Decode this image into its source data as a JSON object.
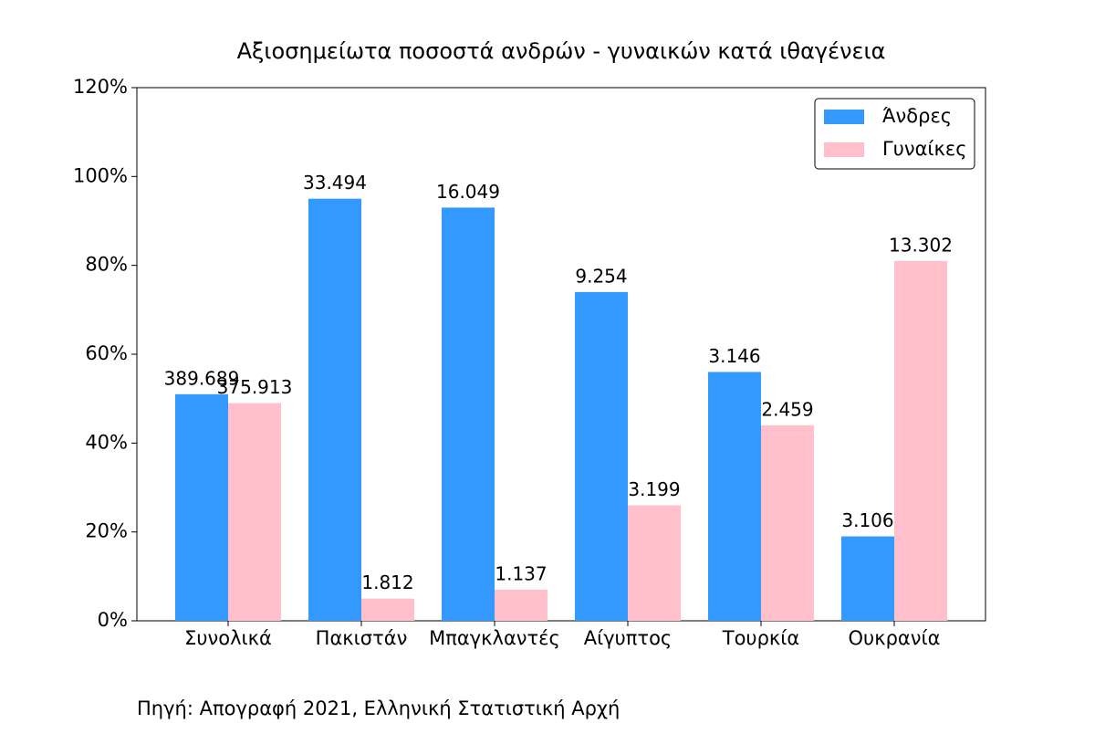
{
  "chart_data": {
    "type": "bar",
    "title": "Αξιοσημείωτα ποσοστά ανδρών - γυναικών κατά ιθαγένεια",
    "source": "Πηγή: Απογραφή 2021, Ελληνική Στατιστική Αρχή",
    "categories": [
      "Συνολικά",
      "Πακιστάν",
      "Μπαγκλαντές",
      "Αίγυπτος",
      "Τουρκία",
      "Ουκρανία"
    ],
    "series": [
      {
        "name": "Άνδρες",
        "color": "#3399ff",
        "values": [
          51,
          95,
          93,
          74,
          56,
          19
        ],
        "count_labels": [
          "389.689",
          "33.494",
          "16.049",
          "9.254",
          "3.146",
          "3.106"
        ]
      },
      {
        "name": "Γυναίκες",
        "color": "#ffc0cb",
        "values": [
          49,
          5,
          7,
          26,
          44,
          81
        ],
        "count_labels": [
          "375.913",
          "1.812",
          "1.137",
          "3.199",
          "2.459",
          "13.302"
        ]
      }
    ],
    "ylim": [
      0,
      120
    ],
    "yticks": [
      {
        "value": 0,
        "label": "0%"
      },
      {
        "value": 20,
        "label": "20%"
      },
      {
        "value": 40,
        "label": "40%"
      },
      {
        "value": 60,
        "label": "60%"
      },
      {
        "value": 80,
        "label": "80%"
      },
      {
        "value": 100,
        "label": "100%"
      },
      {
        "value": 120,
        "label": "120%"
      }
    ],
    "legend": "upper right"
  }
}
